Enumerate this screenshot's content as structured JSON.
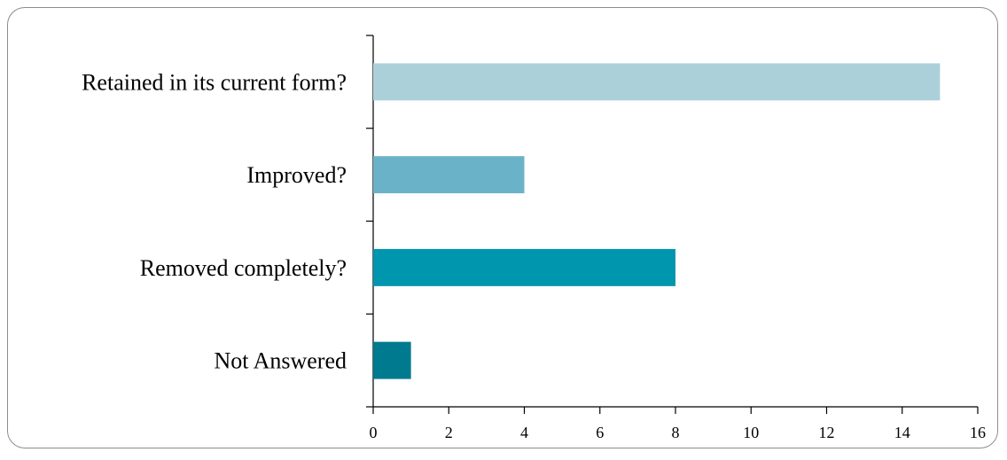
{
  "chart_data": {
    "type": "bar",
    "orientation": "horizontal",
    "categories": [
      "Retained in its current form?",
      "Improved?",
      "Removed completely?",
      "Not Answered"
    ],
    "values": [
      15,
      4,
      8,
      1
    ],
    "colors": [
      "#abd0da",
      "#6ab2c7",
      "#0096ae",
      "#007a8e"
    ],
    "xlim": [
      0,
      16
    ],
    "xticks": [
      "0",
      "2",
      "4",
      "6",
      "8",
      "10",
      "12",
      "14",
      "16"
    ],
    "grid": false,
    "legend": "none"
  }
}
